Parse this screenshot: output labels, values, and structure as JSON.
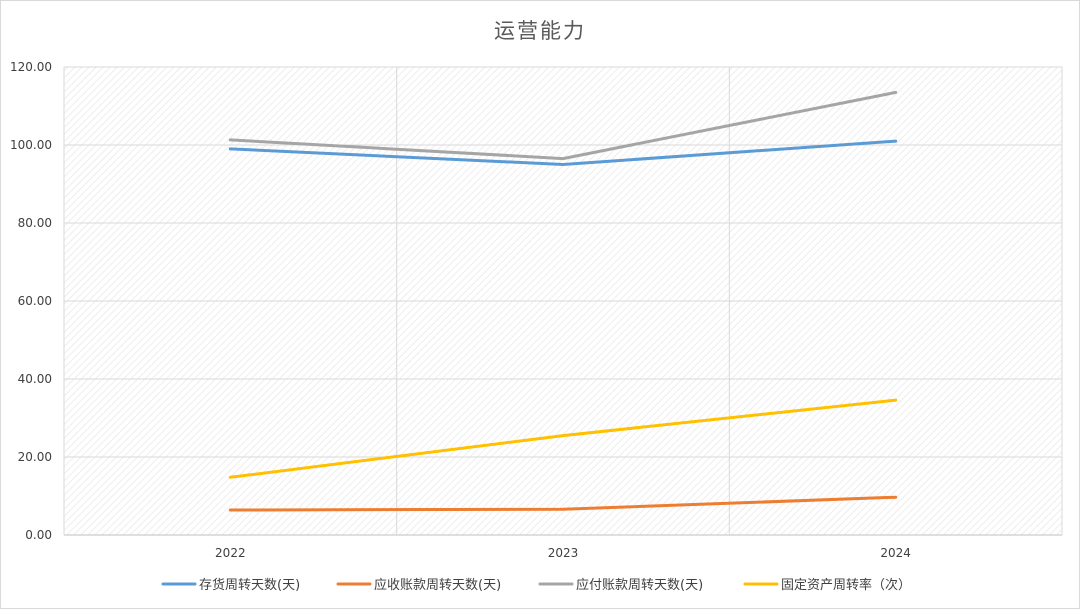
{
  "chart_data": {
    "type": "line",
    "title": "运营能力",
    "categories": [
      "2022",
      "2023",
      "2024"
    ],
    "ylim": [
      0,
      120
    ],
    "yticks": [
      "0.00",
      "20.00",
      "40.00",
      "60.00",
      "80.00",
      "100.00",
      "120.00"
    ],
    "ytick_values": [
      0,
      20,
      40,
      60,
      80,
      100,
      120
    ],
    "grid": true,
    "legend": "bottom",
    "series": [
      {
        "name": "存货周转天数(天)",
        "color": "#5B9BD5",
        "values": [
          99.0,
          95.0,
          101.0
        ]
      },
      {
        "name": "应收账款周转天数(天)",
        "color": "#ED7D31",
        "values": [
          6.4,
          6.6,
          9.7
        ]
      },
      {
        "name": "应付账款周转天数(天)",
        "color": "#A5A5A5",
        "values": [
          101.3,
          96.5,
          113.5
        ]
      },
      {
        "name": "固定资产周转率（次）",
        "color": "#FFC000",
        "values": [
          14.8,
          25.5,
          34.6
        ]
      }
    ]
  }
}
